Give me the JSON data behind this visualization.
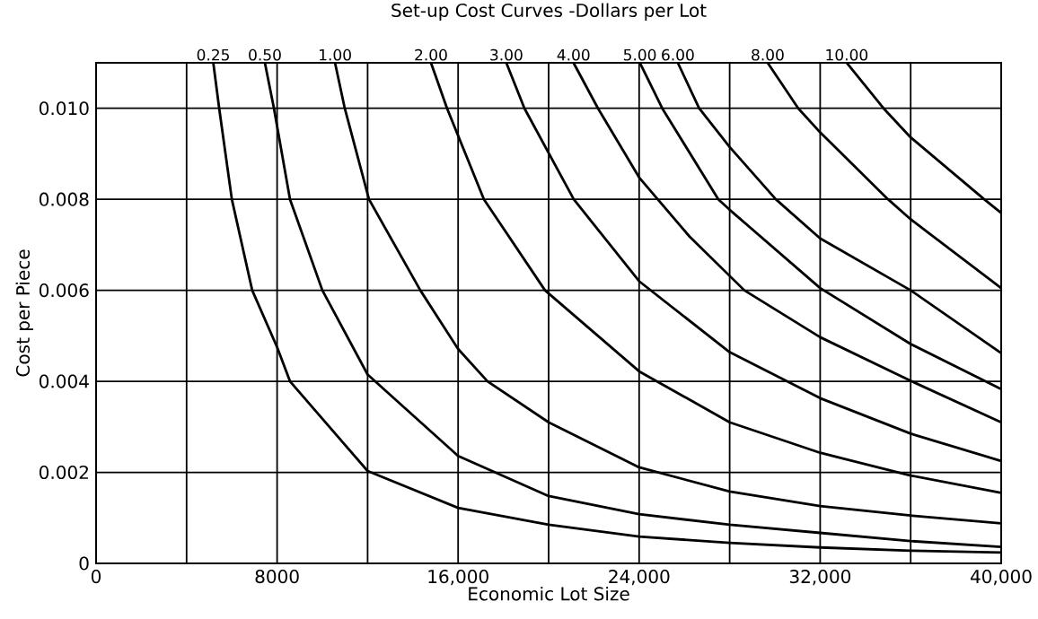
{
  "chart_data": {
    "type": "line",
    "title": "Set-up Cost Curves -Dollars per Lot",
    "xlabel": "Economic Lot Size",
    "ylabel": "Cost per Piece",
    "xlim": [
      0,
      40000
    ],
    "ylim": [
      0,
      0.011
    ],
    "xticks": [
      0,
      {
        "value": 4000,
        "label": null
      },
      8000,
      {
        "value": 12000,
        "label": null
      },
      {
        "value": 16000,
        "label": "16,000"
      },
      {
        "value": 20000,
        "label": null
      },
      {
        "value": 24000,
        "label": "24,000"
      },
      {
        "value": 28000,
        "label": null
      },
      {
        "value": 32000,
        "label": "32,000"
      },
      {
        "value": 36000,
        "label": null
      },
      {
        "value": 40000,
        "label": "40,000"
      }
    ],
    "yticks": [
      0,
      0.002,
      0.004,
      0.006,
      0.008,
      {
        "value": 0.01,
        "label": "0.010"
      }
    ],
    "grid": true,
    "legend": false,
    "marker": "none",
    "line_style": "solid",
    "series": [
      {
        "name": "0.25",
        "color": "#000000",
        "x": [
          5180,
          5440,
          6000,
          6900,
          8000,
          8570,
          12000,
          16000,
          20000,
          24000,
          28000,
          32000,
          36000,
          40000
        ],
        "values": [
          0.011,
          0.01,
          0.008,
          0.006,
          0.00475,
          0.004,
          0.00203,
          0.00122,
          0.00085,
          0.00059,
          0.00045,
          0.00035,
          0.00028,
          0.00024
        ]
      },
      {
        "name": "0.50",
        "color": "#000000",
        "x": [
          7460,
          7860,
          8570,
          10000,
          12000,
          16000,
          20000,
          24000,
          28000,
          32000,
          36000,
          40000
        ],
        "values": [
          0.011,
          0.01,
          0.008,
          0.006,
          0.00415,
          0.00236,
          0.00148,
          0.00108,
          0.00085,
          0.00067,
          0.00049,
          0.00036
        ]
      },
      {
        "name": "1.00",
        "color": "#000000",
        "x": [
          10560,
          10990,
          12060,
          14330,
          16000,
          17300,
          20000,
          24000,
          28000,
          32000,
          36000,
          40000
        ],
        "values": [
          0.011,
          0.01,
          0.008,
          0.006,
          0.00471,
          0.004,
          0.0031,
          0.00211,
          0.00158,
          0.00126,
          0.00105,
          0.00088
        ]
      },
      {
        "name": "2.00",
        "color": "#000000",
        "x": [
          14800,
          15510,
          17140,
          19840,
          24000,
          28000,
          32000,
          36000,
          40000
        ],
        "values": [
          0.011,
          0.01,
          0.008,
          0.006,
          0.00422,
          0.0031,
          0.00243,
          0.00193,
          0.00155
        ]
      },
      {
        "name": "3.00",
        "color": "#000000",
        "x": [
          18130,
          18930,
          21110,
          24000,
          28000,
          32000,
          36000,
          40000
        ],
        "values": [
          0.011,
          0.01,
          0.008,
          0.0062,
          0.00464,
          0.00363,
          0.00285,
          0.00225
        ]
      },
      {
        "name": "4.00",
        "color": "#000000",
        "x": [
          21100,
          22180,
          24000,
          26230,
          28650,
          32000,
          36000,
          40000
        ],
        "values": [
          0.011,
          0.01,
          0.00848,
          0.00718,
          0.006,
          0.00497,
          0.00401,
          0.0031
        ]
      },
      {
        "name": "5.00",
        "color": "#000000",
        "x": [
          24030,
          25020,
          27500,
          28000,
          32000,
          36000,
          40000
        ],
        "values": [
          0.011,
          0.01,
          0.008,
          0.00777,
          0.00605,
          0.00482,
          0.00383
        ]
      },
      {
        "name": "6.00",
        "color": "#000000",
        "x": [
          25710,
          26650,
          28000,
          30040,
          32000,
          36000,
          40000
        ],
        "values": [
          0.011,
          0.01,
          0.00915,
          0.008,
          0.00714,
          0.006,
          0.00462
        ]
      },
      {
        "name": "8.00",
        "color": "#000000",
        "x": [
          29680,
          31030,
          32000,
          35000,
          36000,
          40000
        ],
        "values": [
          0.011,
          0.01,
          0.00947,
          0.008,
          0.00756,
          0.00605
        ]
      },
      {
        "name": "10.00",
        "color": "#000000",
        "x": [
          33170,
          34800,
          36000,
          39250,
          40000
        ],
        "values": [
          0.011,
          0.01,
          0.00936,
          0.008,
          0.0077
        ]
      }
    ]
  }
}
